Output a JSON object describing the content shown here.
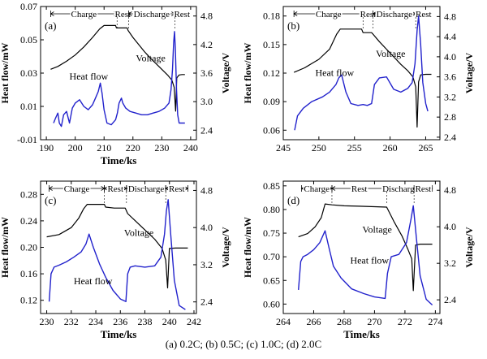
{
  "caption": "(a) 0.2C; (b) 0.5C; (c) 1.0C; (d) 2.0C",
  "colors": {
    "heat": "#2222cc",
    "voltage": "#000000"
  },
  "chart_data": [
    {
      "type": "line",
      "panel": "(a)",
      "xlabel": "Time/ks",
      "ylabel": "Heat flow/mW",
      "y2label": "Voltage/V",
      "xlim": [
        188,
        242
      ],
      "ylim": [
        -0.01,
        0.07
      ],
      "y2lim": [
        2.2,
        5.0
      ],
      "xticks": [
        190,
        200,
        210,
        220,
        230,
        240
      ],
      "yticks": [
        -0.01,
        0.01,
        0.03,
        0.05,
        0.07
      ],
      "ytick_labels": [
        "-0.01",
        "0.01",
        "0.03",
        "0.05",
        "0.07"
      ],
      "y2ticks": [
        2.4,
        3.0,
        3.6,
        4.2,
        4.8
      ],
      "y2tick_labels": [
        "2.4",
        "3.0",
        "3.6",
        "4.2",
        "4.8"
      ],
      "phases": [
        {
          "label": "Charge",
          "start": 191.5,
          "end": 214.5
        },
        {
          "label": "Rest",
          "start": 214.5,
          "end": 218.5
        },
        {
          "label": "Discharge",
          "start": 218.5,
          "end": 234.5
        },
        {
          "label": "Rest",
          "start": 234.5,
          "end": 239.5
        }
      ],
      "series": [
        {
          "name": "Voltage",
          "axis": "y2",
          "x": [
            191.5,
            194,
            197,
            200,
            203,
            206,
            208.5,
            210,
            212,
            214,
            214.3,
            215.5,
            216.5,
            218,
            218.3,
            220,
            222,
            224,
            226,
            228,
            230,
            232,
            233.5,
            234.3,
            234.8,
            235.2,
            236,
            237,
            238
          ],
          "y": [
            3.68,
            3.74,
            3.85,
            3.98,
            4.15,
            4.35,
            4.53,
            4.6,
            4.6,
            4.6,
            4.55,
            4.55,
            4.55,
            4.55,
            4.5,
            4.35,
            4.2,
            4.05,
            3.92,
            3.8,
            3.68,
            3.56,
            3.45,
            3.3,
            2.8,
            3.5,
            3.56,
            3.57,
            3.57
          ]
        },
        {
          "name": "Heat flow",
          "axis": "y",
          "x": [
            192.5,
            193.2,
            194,
            194.5,
            195.2,
            196,
            197,
            198,
            199,
            200,
            201.5,
            203,
            204.5,
            206,
            207,
            208,
            208.7,
            209.3,
            210,
            211,
            212.5,
            214,
            214.6,
            215.2,
            216,
            216.5,
            217.5,
            219,
            221,
            223,
            225,
            227,
            229,
            231,
            232.5,
            233.2,
            233.7,
            234.1,
            234.4,
            234.7,
            235.1,
            235.5,
            236,
            237,
            238
          ],
          "y": [
            0.0,
            0.003,
            0.006,
            0.0,
            -0.002,
            0.005,
            0.007,
            0.0,
            0.009,
            0.012,
            0.014,
            0.01,
            0.008,
            0.011,
            0.015,
            0.019,
            0.024,
            0.018,
            0.008,
            0.0,
            -0.001,
            0.002,
            0.006,
            0.012,
            0.015,
            0.012,
            0.009,
            0.007,
            0.006,
            0.005,
            0.005,
            0.006,
            0.007,
            0.009,
            0.012,
            0.02,
            0.032,
            0.048,
            0.055,
            0.045,
            0.02,
            0.005,
            0.0,
            0.0,
            0.0
          ]
        }
      ],
      "annotations": [
        {
          "text": "Voltage",
          "x": 221,
          "y": 0.037
        },
        {
          "text": "Heat flow",
          "x": 198,
          "y": 0.026
        }
      ]
    },
    {
      "type": "line",
      "panel": "(b)",
      "xlabel": "",
      "ylabel": "Heat flow/mW",
      "y2label": "Voltage/V",
      "xlim": [
        245,
        267
      ],
      "ylim": [
        0.05,
        0.19
      ],
      "y2lim": [
        2.35,
        5.0
      ],
      "xticks": [
        245,
        250,
        255,
        260,
        265
      ],
      "yticks": [
        0.06,
        0.09,
        0.12,
        0.15,
        0.18
      ],
      "ytick_labels": [
        "0.06",
        "0.09",
        "0.12",
        "0.15",
        "0.18"
      ],
      "y2ticks": [
        2.4,
        2.8,
        3.2,
        3.6,
        4.0,
        4.4,
        4.8
      ],
      "y2tick_labels": [
        "2.4",
        "2.8",
        "3.2",
        "3.6",
        "4.0",
        "4.4",
        "4.8"
      ],
      "phases": [
        {
          "label": "Charge",
          "start": 246.5,
          "end": 256.2
        },
        {
          "label": "Rest",
          "start": 256.2,
          "end": 257.6
        },
        {
          "label": "Discharge",
          "start": 257.6,
          "end": 263.6
        },
        {
          "label": "Rest",
          "start": 263.6,
          "end": 265.8
        }
      ],
      "series": [
        {
          "name": "Voltage",
          "axis": "y2",
          "x": [
            246.5,
            248,
            250,
            251.5,
            252.5,
            253,
            254,
            255,
            256,
            256.2,
            257,
            257.4,
            257.6,
            258.5,
            259.5,
            260.5,
            261.5,
            262.5,
            263.2,
            263.6,
            263.8,
            264,
            264.3,
            265,
            265.8
          ],
          "y": [
            3.69,
            3.78,
            3.95,
            4.15,
            4.45,
            4.55,
            4.55,
            4.55,
            4.55,
            4.48,
            4.48,
            4.48,
            4.45,
            4.3,
            4.15,
            4.0,
            3.85,
            3.72,
            3.6,
            3.4,
            2.6,
            3.5,
            3.64,
            3.65,
            3.65
          ]
        },
        {
          "name": "Heat flow",
          "axis": "y",
          "x": [
            246.6,
            247,
            247.8,
            249,
            250.5,
            251.5,
            252.4,
            252.8,
            253.2,
            253.8,
            254.5,
            255.5,
            256.2,
            256.8,
            257.4,
            257.8,
            258.5,
            259.5,
            260.5,
            261.5,
            262.5,
            263.1,
            263.5,
            263.8,
            264,
            264.3,
            264.6,
            265,
            265.3
          ],
          "y": [
            0.06,
            0.075,
            0.083,
            0.09,
            0.095,
            0.1,
            0.108,
            0.115,
            0.118,
            0.1,
            0.088,
            0.086,
            0.087,
            0.086,
            0.088,
            0.108,
            0.115,
            0.116,
            0.103,
            0.1,
            0.104,
            0.11,
            0.13,
            0.165,
            0.18,
            0.15,
            0.11,
            0.088,
            0.08
          ]
        }
      ],
      "annotations": [
        {
          "text": "Voltage",
          "x": 258,
          "y": 0.137
        },
        {
          "text": "Heat flow",
          "x": 249.5,
          "y": 0.117
        }
      ]
    },
    {
      "type": "line",
      "panel": "(c)",
      "xlabel": "Time/ks",
      "ylabel": "Heat flow/mW",
      "y2label": "Voltage/V",
      "xlim": [
        229.5,
        242.2
      ],
      "ylim": [
        0.1,
        0.3
      ],
      "y2lim": [
        2.15,
        5.0
      ],
      "xticks": [
        230,
        232,
        234,
        236,
        238,
        240,
        242
      ],
      "yticks": [
        0.12,
        0.16,
        0.2,
        0.24,
        0.28
      ],
      "ytick_labels": [
        "0.12",
        "0.16",
        "0.20",
        "0.24",
        "0.28"
      ],
      "y2ticks": [
        2.4,
        3.2,
        4.0,
        4.8
      ],
      "y2tick_labels": [
        "2.4",
        "3.2",
        "4.0",
        "4.8"
      ],
      "phases": [
        {
          "label": "Charge",
          "start": 230.2,
          "end": 234.7
        },
        {
          "label": "Rest",
          "start": 234.7,
          "end": 236.5
        },
        {
          "label": "Discharge",
          "start": 236.5,
          "end": 239.7
        },
        {
          "label": "Rest",
          "start": 239.7,
          "end": 241.5
        }
      ],
      "series": [
        {
          "name": "Voltage",
          "axis": "y2",
          "x": [
            230,
            231,
            232,
            232.6,
            233,
            233.3,
            234,
            234.7,
            234.8,
            235.5,
            236.4,
            236.6,
            237.2,
            238,
            238.8,
            239.4,
            239.7,
            239.85,
            240,
            240.5,
            241,
            241.5
          ],
          "y": [
            3.8,
            3.85,
            4.0,
            4.2,
            4.4,
            4.5,
            4.5,
            4.5,
            4.44,
            4.42,
            4.42,
            4.3,
            4.15,
            3.95,
            3.75,
            3.55,
            3.3,
            2.7,
            3.55,
            3.56,
            3.56,
            3.56
          ]
        },
        {
          "name": "Heat flow",
          "axis": "y",
          "x": [
            230.2,
            230.35,
            230.6,
            231,
            231.6,
            232.2,
            232.8,
            233.2,
            233.45,
            233.8,
            234.3,
            234.8,
            235.4,
            236,
            236.45,
            236.6,
            236.8,
            237.2,
            238,
            238.8,
            239.3,
            239.6,
            239.75,
            239.9,
            240.1,
            240.4,
            240.8,
            241.3
          ],
          "y": [
            0.118,
            0.16,
            0.17,
            0.173,
            0.178,
            0.185,
            0.193,
            0.205,
            0.22,
            0.2,
            0.175,
            0.155,
            0.135,
            0.122,
            0.118,
            0.16,
            0.17,
            0.172,
            0.17,
            0.172,
            0.185,
            0.22,
            0.255,
            0.272,
            0.22,
            0.15,
            0.112,
            0.106
          ]
        }
      ],
      "annotations": [
        {
          "text": "Voltage",
          "x": 236.3,
          "y": 0.217
        },
        {
          "text": "Heat flow",
          "x": 232.2,
          "y": 0.144
        }
      ]
    },
    {
      "type": "line",
      "panel": "(d)",
      "xlabel": "Time/ks",
      "ylabel": "Heat flow/mW",
      "y2label": "Voltage/V",
      "xlim": [
        264,
        274.3
      ],
      "ylim": [
        0.58,
        0.86
      ],
      "y2lim": [
        2.1,
        5.0
      ],
      "xticks": [
        264,
        266,
        268,
        270,
        272,
        274
      ],
      "yticks": [
        0.6,
        0.65,
        0.7,
        0.75,
        0.8,
        0.85
      ],
      "ytick_labels": [
        "0.60",
        "0.65",
        "0.70",
        "0.75",
        "0.80",
        "0.85"
      ],
      "y2ticks": [
        2.4,
        3.2,
        4.0,
        4.8
      ],
      "y2tick_labels": [
        "2.4",
        "3.2",
        "4.0",
        "4.8"
      ],
      "phases": [
        {
          "label": "Charge",
          "start": 265.2,
          "end": 267.2
        },
        {
          "label": "Rest",
          "start": 267.2,
          "end": 270.8
        },
        {
          "label": "Discharge",
          "start": 270.8,
          "end": 272.6
        },
        {
          "label": "Rest",
          "start": 272.6,
          "end": 273.8
        }
      ],
      "series": [
        {
          "name": "Voltage",
          "axis": "y2",
          "x": [
            265,
            265.6,
            266.1,
            266.5,
            266.75,
            267.2,
            268,
            269,
            270,
            270.8,
            271.3,
            271.8,
            272.2,
            272.45,
            272.55,
            272.7,
            273,
            273.5,
            273.8
          ],
          "y": [
            3.78,
            3.85,
            4.0,
            4.2,
            4.5,
            4.48,
            4.46,
            4.45,
            4.44,
            4.43,
            4.1,
            3.8,
            3.5,
            3.3,
            2.6,
            3.6,
            3.62,
            3.62,
            3.62
          ]
        },
        {
          "name": "Heat flow",
          "axis": "y",
          "x": [
            265,
            265.15,
            265.3,
            265.6,
            266,
            266.4,
            266.75,
            267,
            267.3,
            267.8,
            268.5,
            269.3,
            270,
            270.7,
            270.85,
            271.1,
            271.6,
            272.1,
            272.4,
            272.55,
            272.75,
            273,
            273.4,
            273.8
          ],
          "y": [
            0.63,
            0.69,
            0.7,
            0.705,
            0.715,
            0.73,
            0.755,
            0.72,
            0.68,
            0.655,
            0.632,
            0.622,
            0.615,
            0.612,
            0.665,
            0.7,
            0.705,
            0.73,
            0.78,
            0.808,
            0.74,
            0.66,
            0.61,
            0.598
          ]
        }
      ],
      "annotations": [
        {
          "text": "Voltage",
          "x": 269.2,
          "y": 0.751
        },
        {
          "text": "Heat flow",
          "x": 268.4,
          "y": 0.686
        }
      ]
    }
  ]
}
